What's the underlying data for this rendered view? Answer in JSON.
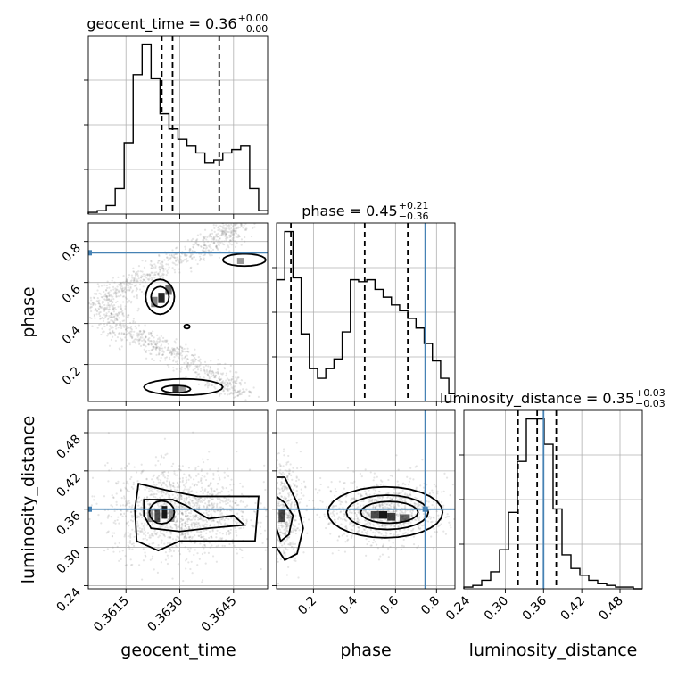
{
  "chart_data": {
    "type": "corner",
    "parameters": [
      "geocent_time",
      "phase",
      "luminosity_distance"
    ],
    "truths": {
      "phase": 0.745,
      "luminosity_distance": 0.36
    },
    "ranges": {
      "geocent_time": [
        0.36045,
        0.36545
      ],
      "phase": [
        0.02,
        0.89
      ],
      "luminosity_distance": [
        0.235,
        0.515
      ]
    },
    "titles": [
      {
        "param": "geocent_time",
        "label": "geocent_time = 0.36",
        "plus": "+0.00",
        "minus": "−0.00"
      },
      {
        "param": "phase",
        "label": "phase = 0.45",
        "plus": "+0.21",
        "minus": "−0.36"
      },
      {
        "param": "luminosity_distance",
        "label": "luminosity_distance = 0.35",
        "plus": "+0.03",
        "minus": "−0.03"
      }
    ],
    "quantiles": {
      "geocent_time": [
        0.3625,
        0.3628,
        0.3641
      ],
      "phase": [
        0.09,
        0.45,
        0.66
      ],
      "luminosity_distance": [
        0.32,
        0.35,
        0.38
      ]
    },
    "ticks": {
      "geocent_time": {
        "values": [
          0.3615,
          0.363,
          0.3645
        ],
        "labels": [
          "0.3615",
          "0.3630",
          "0.3645"
        ]
      },
      "phase": {
        "values": [
          0.2,
          0.4,
          0.6,
          0.8
        ],
        "labels": [
          "0.2",
          "0.4",
          "0.6",
          "0.8"
        ]
      },
      "luminosity_distance": {
        "values": [
          0.24,
          0.3,
          0.36,
          0.42,
          0.48
        ],
        "labels": [
          "0.24",
          "0.30",
          "0.36",
          "0.42",
          "0.48"
        ]
      }
    },
    "histograms": {
      "geocent_time": {
        "edges": [
          0.36045,
          0.3607,
          0.36095,
          0.3612,
          0.36145,
          0.3617,
          0.36195,
          0.3622,
          0.36245,
          0.3627,
          0.36295,
          0.3632,
          0.36345,
          0.3637,
          0.36395,
          0.3642,
          0.36445,
          0.3647,
          0.36495,
          0.3652,
          0.36545
        ],
        "counts": [
          1,
          2,
          5,
          15,
          42,
          82,
          100,
          80,
          59,
          50,
          44,
          40,
          36,
          30,
          32,
          36,
          38,
          40,
          15,
          2
        ]
      },
      "phase": {
        "edges": [
          0.02,
          0.06,
          0.1,
          0.14,
          0.18,
          0.22,
          0.26,
          0.3,
          0.34,
          0.38,
          0.42,
          0.46,
          0.5,
          0.54,
          0.58,
          0.62,
          0.66,
          0.7,
          0.74,
          0.78,
          0.82,
          0.86,
          0.89
        ],
        "counts": [
          63,
          88,
          64,
          35,
          17,
          12,
          17,
          22,
          36,
          63,
          62,
          63,
          58,
          54,
          50,
          47,
          43,
          38,
          30,
          21,
          12,
          4
        ]
      },
      "luminosity_distance": {
        "edges": [
          0.235,
          0.249,
          0.263,
          0.277,
          0.291,
          0.305,
          0.319,
          0.333,
          0.347,
          0.361,
          0.375,
          0.389,
          0.403,
          0.417,
          0.431,
          0.445,
          0.459,
          0.473,
          0.487,
          0.501,
          0.515
        ],
        "counts": [
          1,
          2,
          5,
          10,
          23,
          45,
          75,
          100,
          100,
          85,
          47,
          20,
          12,
          8,
          5,
          3,
          2,
          1,
          1,
          0
        ]
      }
    },
    "grid": true
  }
}
